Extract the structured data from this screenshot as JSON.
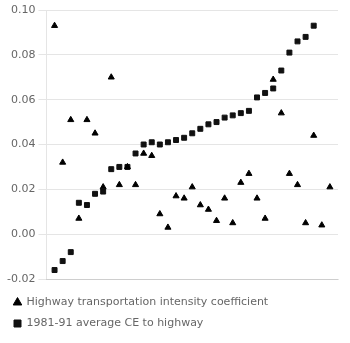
{
  "chart_data": {
    "type": "scatter",
    "series": [
      {
        "name": "Highway transportation intensity coefficient",
        "color": "#000000",
        "marker": "triangle",
        "x": [
          1,
          2,
          3,
          4,
          5,
          6,
          7,
          8,
          9,
          10,
          11,
          12,
          13,
          14,
          15,
          16,
          17,
          18,
          19,
          20,
          21,
          22,
          23,
          24,
          25,
          26,
          27,
          28,
          29,
          30,
          31,
          32,
          33,
          34,
          35
        ],
        "values": [
          0.093,
          0.032,
          0.051,
          0.007,
          0.051,
          0.045,
          0.021,
          0.07,
          0.022,
          0.03,
          0.022,
          0.036,
          0.035,
          0.009,
          0.003,
          0.017,
          0.016,
          0.021,
          0.013,
          0.011,
          0.006,
          0.016,
          0.005,
          0.023,
          0.027,
          0.016,
          0.007,
          0.069,
          0.054,
          0.027,
          0.022,
          0.005,
          0.044,
          0.004,
          0.021
        ]
      },
      {
        "name": "1981-91 average CE to highway",
        "color": "#111111",
        "marker": "square",
        "x": [
          1,
          2,
          3,
          4,
          5,
          6,
          7,
          8,
          9,
          10,
          11,
          12,
          13,
          14,
          15,
          16,
          17,
          18,
          19,
          20,
          21,
          22,
          23,
          24,
          25,
          26,
          27,
          28,
          29,
          30,
          31,
          32,
          33
        ],
        "values": [
          -0.016,
          -0.012,
          -0.008,
          0.014,
          0.013,
          0.018,
          0.019,
          0.029,
          0.03,
          0.03,
          0.036,
          0.04,
          0.041,
          0.04,
          0.041,
          0.042,
          0.043,
          0.045,
          0.047,
          0.049,
          0.05,
          0.052,
          0.053,
          0.054,
          0.055,
          0.061,
          0.063,
          0.065,
          0.073,
          0.081,
          0.086,
          0.088,
          0.093
        ]
      }
    ],
    "xlim": [
      0,
      36
    ],
    "ylim": [
      -0.02,
      0.1
    ],
    "yticks": [
      -0.02,
      {
        "value": 0,
        "label": "0.00"
      },
      0.02,
      0.04,
      0.06,
      0.08,
      {
        "value": 0.1,
        "label": "0.10"
      }
    ],
    "tick_labels": "y",
    "grid": true,
    "legend": "bottom left"
  }
}
